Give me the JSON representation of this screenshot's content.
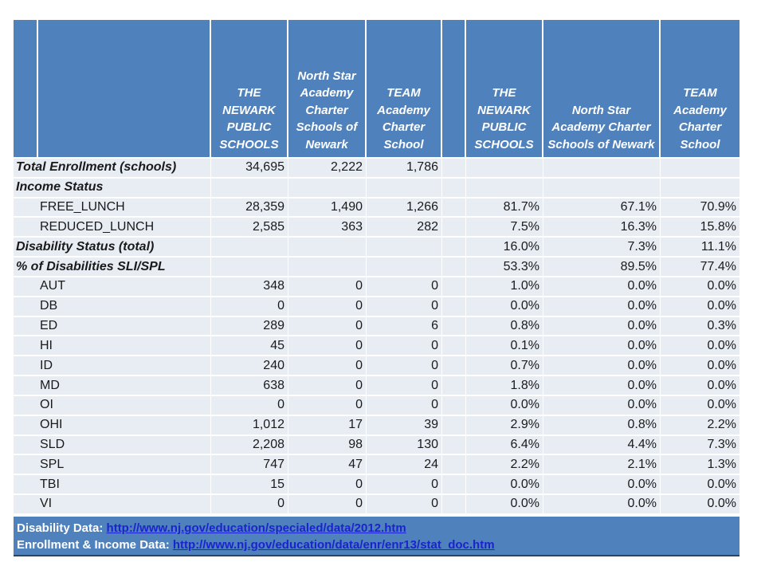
{
  "table": {
    "header": {
      "cells": [
        "",
        "",
        "THE NEWARK PUBLIC SCHOOLS",
        "North Star Academy Charter Schools of Newark",
        "TEAM Academy Charter School",
        "",
        "THE NEWARK PUBLIC SCHOOLS",
        "North Star Academy Charter Schools of Newark",
        "TEAM Academy Charter School"
      ]
    },
    "rows": [
      {
        "label": "Total Enrollment (schools)",
        "style": "section",
        "values": [
          "34,695",
          "2,222",
          "1,786",
          "",
          "",
          ""
        ]
      },
      {
        "label": "Income Status",
        "style": "section",
        "values": [
          "",
          "",
          "",
          "",
          "",
          ""
        ]
      },
      {
        "label": "FREE_LUNCH",
        "style": "sub",
        "values": [
          "28,359",
          "1,490",
          "1,266",
          "81.7%",
          "67.1%",
          "70.9%"
        ]
      },
      {
        "label": "REDUCED_LUNCH",
        "style": "sub",
        "values": [
          "2,585",
          "363",
          "282",
          "7.5%",
          "16.3%",
          "15.8%"
        ]
      },
      {
        "label": "Disability Status (total)",
        "style": "section",
        "values": [
          "",
          "",
          "",
          "16.0%",
          "7.3%",
          "11.1%"
        ]
      },
      {
        "label": "% of Disabilities SLI/SPL",
        "style": "section",
        "values": [
          "",
          "",
          "",
          "53.3%",
          "89.5%",
          "77.4%"
        ]
      },
      {
        "label": "AUT",
        "style": "sub",
        "values": [
          "348",
          "0",
          "0",
          "1.0%",
          "0.0%",
          "0.0%"
        ]
      },
      {
        "label": "DB",
        "style": "sub",
        "values": [
          "0",
          "0",
          "0",
          "0.0%",
          "0.0%",
          "0.0%"
        ]
      },
      {
        "label": "ED",
        "style": "sub",
        "values": [
          "289",
          "0",
          "6",
          "0.8%",
          "0.0%",
          "0.3%"
        ]
      },
      {
        "label": "HI",
        "style": "sub",
        "values": [
          "45",
          "0",
          "0",
          "0.1%",
          "0.0%",
          "0.0%"
        ]
      },
      {
        "label": "ID",
        "style": "sub",
        "values": [
          "240",
          "0",
          "0",
          "0.7%",
          "0.0%",
          "0.0%"
        ]
      },
      {
        "label": "MD",
        "style": "sub",
        "values": [
          "638",
          "0",
          "0",
          "1.8%",
          "0.0%",
          "0.0%"
        ]
      },
      {
        "label": "OI",
        "style": "sub",
        "values": [
          "0",
          "0",
          "0",
          "0.0%",
          "0.0%",
          "0.0%"
        ]
      },
      {
        "label": "OHI",
        "style": "sub",
        "values": [
          "1,012",
          "17",
          "39",
          "2.9%",
          "0.8%",
          "2.2%"
        ]
      },
      {
        "label": "SLD",
        "style": "sub",
        "values": [
          "2,208",
          "98",
          "130",
          "6.4%",
          "4.4%",
          "7.3%"
        ]
      },
      {
        "label": "SPL",
        "style": "sub",
        "values": [
          "747",
          "47",
          "24",
          "2.2%",
          "2.1%",
          "1.3%"
        ]
      },
      {
        "label": "TBI",
        "style": "sub",
        "values": [
          "15",
          "0",
          "0",
          "0.0%",
          "0.0%",
          "0.0%"
        ]
      },
      {
        "label": "VI",
        "style": "sub",
        "values": [
          "0",
          "0",
          "0",
          "0.0%",
          "0.0%",
          "0.0%"
        ]
      }
    ]
  },
  "footer": {
    "lines": [
      {
        "label": "Disability Data: ",
        "link": "http://www.nj.gov/education/specialed/data/2012.htm"
      },
      {
        "label": "Enrollment & Income Data: ",
        "link": "http://www.nj.gov/education/data/enr/enr13/stat_doc.htm"
      }
    ]
  },
  "colors": {
    "header_blue": "#4f81bd",
    "footer_blue": "#4f81bd",
    "footer_edge": "#26456e",
    "row_fill": "#e8edf4",
    "grid_line": "#ffffff",
    "text_dark": "#1a1a1a",
    "header_text": "#ffffff",
    "link_blue": "#1b24cc",
    "page_bg": "#ffffff"
  }
}
